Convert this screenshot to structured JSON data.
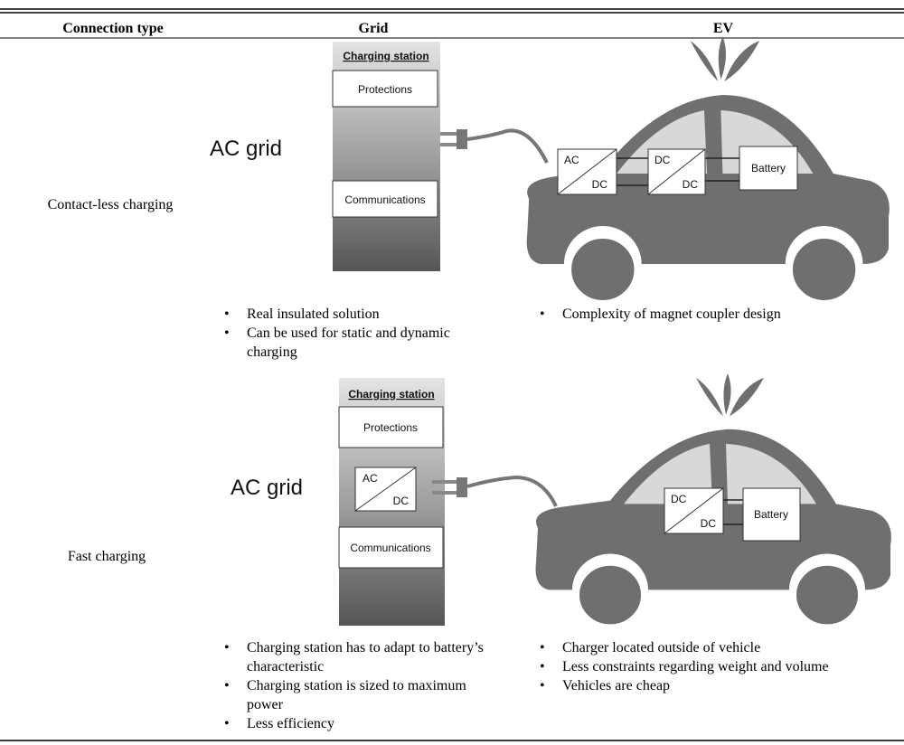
{
  "table": {
    "headers": [
      "Connection type",
      "Grid",
      "EV"
    ],
    "rows": [
      {
        "connection_type": "Contact-less charging",
        "grid": {
          "station": "Charging station",
          "protections": "Protections",
          "communications": "Communications",
          "source": "AC grid",
          "points": [
            "Real insulated solution",
            "Can be used for static and dynamic charging"
          ]
        },
        "ev": {
          "converters": [
            {
              "in": "AC",
              "out": "DC"
            },
            {
              "in": "DC",
              "out": "DC"
            }
          ],
          "battery": "Battery",
          "points": [
            "Complexity of magnet coupler design"
          ]
        }
      },
      {
        "connection_type": "Fast charging",
        "grid": {
          "station": "Charging station",
          "protections": "Protections",
          "converter": {
            "in": "AC",
            "out": "DC"
          },
          "communications": "Communications",
          "source": "AC grid",
          "points": [
            "Charging station has to adapt to battery’s characteristic",
            "Charging station is sized to maximum power",
            "Less efficiency"
          ]
        },
        "ev": {
          "converters": [
            {
              "in": "DC",
              "out": "DC"
            }
          ],
          "battery": "Battery",
          "points": [
            "Charger located outside of vehicle",
            "Less constraints regarding weight and volume",
            "Vehicles are cheap"
          ]
        }
      }
    ]
  }
}
